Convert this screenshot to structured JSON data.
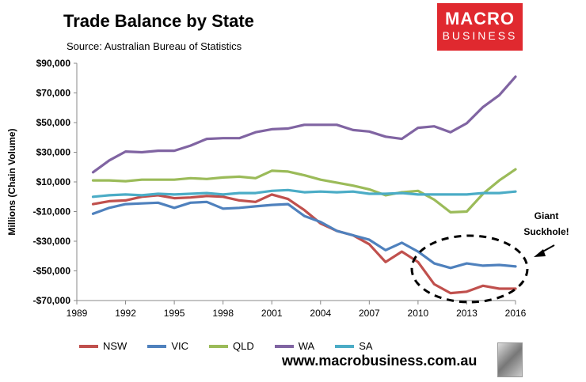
{
  "header": {
    "title": "Trade Balance by State",
    "subtitle": "Source: Australian Bureau of Statistics",
    "logo_line1": "MACRO",
    "logo_line2": "BUSINESS"
  },
  "footer": {
    "url": "www.macrobusiness.com.au"
  },
  "chart_data": {
    "type": "line",
    "title": "Trade Balance by State",
    "ylabel": "Millions (Chain Volume)",
    "xlabel": "",
    "xlim": [
      1989,
      2016
    ],
    "ylim": [
      -70000,
      90000
    ],
    "yticks": [
      -70000,
      -50000,
      -30000,
      -10000,
      10000,
      30000,
      50000,
      70000,
      90000
    ],
    "ytick_labels": [
      "-$70,000",
      "-$50,000",
      "-$30,000",
      "-$10,000",
      "$10,000",
      "$30,000",
      "$50,000",
      "$70,000",
      "$90,000"
    ],
    "xticks": [
      1989,
      1992,
      1995,
      1998,
      2001,
      2004,
      2007,
      2010,
      2013,
      2016
    ],
    "grid": false,
    "legend_position": "bottom",
    "x": [
      1990,
      1991,
      1992,
      1993,
      1994,
      1995,
      1996,
      1997,
      1998,
      1999,
      2000,
      2001,
      2002,
      2003,
      2004,
      2005,
      2006,
      2007,
      2008,
      2009,
      2010,
      2011,
      2012,
      2013,
      2014,
      2015,
      2016
    ],
    "series": [
      {
        "name": "NSW",
        "color": "#c0504d",
        "values": [
          -5000,
          -3000,
          -2500,
          0,
          1000,
          -1000,
          -500,
          500,
          0,
          -2500,
          -3500,
          1500,
          -1500,
          -9000,
          -18000,
          -23000,
          -26000,
          -32000,
          -44000,
          -37000,
          -44000,
          -59000,
          -65000,
          -64000,
          -60000,
          -62000,
          -62000
        ]
      },
      {
        "name": "VIC",
        "color": "#4f81bd",
        "values": [
          -11500,
          -7500,
          -5000,
          -4500,
          -4000,
          -7500,
          -4000,
          -3500,
          -8000,
          -7500,
          -6500,
          -5500,
          -5000,
          -13000,
          -17000,
          -23000,
          -26000,
          -29000,
          -36000,
          -31000,
          -37000,
          -45000,
          -48000,
          -45000,
          -46500,
          -46000,
          -47000
        ]
      },
      {
        "name": "QLD",
        "color": "#9bbb59",
        "values": [
          11000,
          11000,
          10500,
          11500,
          11500,
          11500,
          12500,
          12000,
          13000,
          13500,
          12500,
          17500,
          17000,
          14500,
          11500,
          9500,
          7500,
          5000,
          1000,
          3000,
          4000,
          -2000,
          -10500,
          -10000,
          2000,
          11000,
          18500
        ]
      },
      {
        "name": "WA",
        "color": "#8064a2",
        "values": [
          16500,
          24500,
          30500,
          30000,
          31000,
          31000,
          34500,
          39000,
          39500,
          39500,
          43500,
          45500,
          46000,
          48500,
          48500,
          48500,
          45000,
          44000,
          40500,
          39000,
          46500,
          47500,
          43500,
          49500,
          60500,
          68500,
          81000
        ]
      },
      {
        "name": "SA",
        "color": "#4bacc6",
        "values": [
          0,
          1000,
          1500,
          1000,
          2000,
          1500,
          2000,
          2500,
          1500,
          2500,
          2500,
          4000,
          4500,
          3000,
          3500,
          3000,
          3500,
          2000,
          2000,
          2500,
          1500,
          1500,
          1500,
          1500,
          2500,
          2500,
          3500
        ]
      }
    ],
    "annotation": {
      "text_line1": "Giant",
      "text_line2": "Suckhole!"
    }
  }
}
